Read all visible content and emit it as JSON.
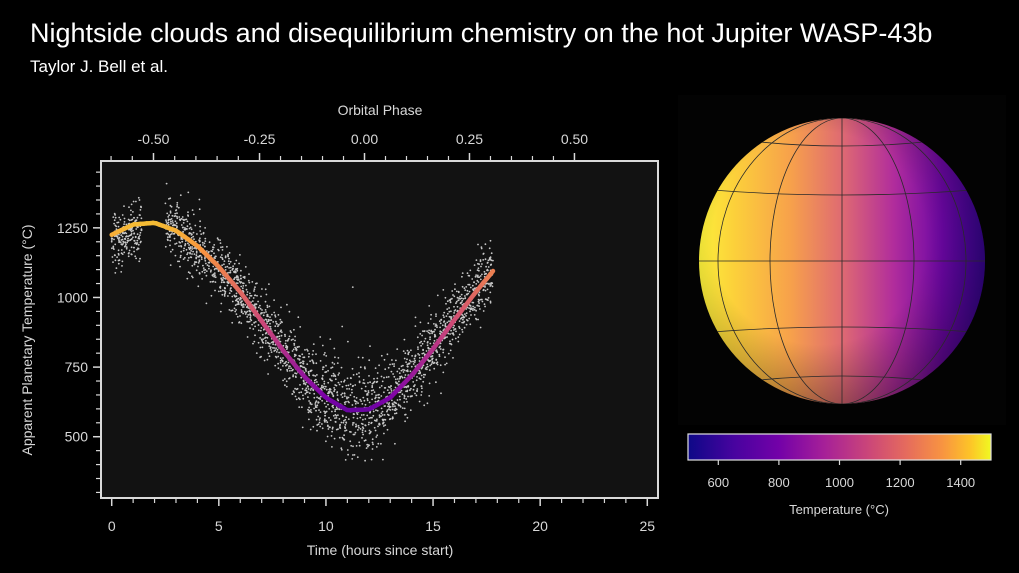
{
  "header": {
    "title": "Nightside clouds and disequilibrium chemistry on the hot Jupiter WASP-43b",
    "subtitle": "Taylor J. Bell et al."
  },
  "colors": {
    "background": "#000000",
    "plot_background": "#121212",
    "frame": "#d9d9d9",
    "points": "#c8c8c8",
    "colorbar_low": "#0d0887",
    "colorbar_mid": "#cc4778",
    "colorbar_high": "#f0f921"
  },
  "chart_data": [
    {
      "type": "scatter",
      "xlabel": "Time (hours since start)",
      "ylabel": "Apparent Planetary Temperature (°C)",
      "top_xlabel": "Orbital Phase",
      "xlim": [
        -0.5,
        25.5
      ],
      "ylim": [
        280,
        1490
      ],
      "xticks": [
        "0",
        "5",
        "10",
        "15",
        "20",
        "25"
      ],
      "xtick_values": [
        0,
        5,
        10,
        15,
        20,
        25
      ],
      "yticks": [
        "500",
        "750",
        "1000",
        "1250"
      ],
      "ytick_values": [
        500,
        750,
        1000,
        1250
      ],
      "top_ticks": [
        "-0.50",
        "-0.25",
        "0.00",
        "0.25",
        "0.50"
      ],
      "top_tick_time_values": [
        1.95,
        6.9,
        11.8,
        16.7,
        21.6
      ],
      "grid": false,
      "data_gap": [
        1.4,
        2.5
      ],
      "model_curve": {
        "x": [
          0,
          1,
          2,
          3,
          4,
          5,
          6,
          7,
          8,
          9,
          10,
          11,
          12,
          13,
          14,
          15,
          16,
          17,
          17.8
        ],
        "y": [
          1225,
          1262,
          1268,
          1240,
          1185,
          1110,
          1020,
          915,
          810,
          715,
          640,
          595,
          598,
          640,
          720,
          815,
          920,
          1020,
          1095
        ]
      },
      "scatter_spread": {
        "x": [
          0,
          3,
          6,
          9,
          10.5,
          11.5,
          13,
          15,
          17.8
        ],
        "sigma": [
          50,
          55,
          55,
          65,
          85,
          85,
          70,
          60,
          60
        ]
      }
    },
    {
      "type": "heatmap",
      "xlabel": "Temperature (°C)",
      "colorbar_ticks": [
        "600",
        "800",
        "1000",
        "1200",
        "1400"
      ],
      "colorbar_tick_values": [
        600,
        800,
        1000,
        1200,
        1400
      ],
      "colorbar_range": [
        500,
        1500
      ]
    }
  ]
}
